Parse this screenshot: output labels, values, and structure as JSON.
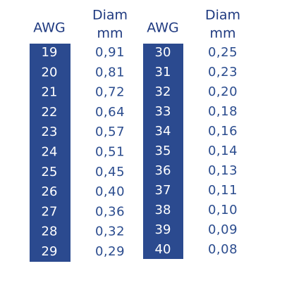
{
  "tables": [
    {
      "header": {
        "awg": "AWG",
        "diam": [
          "Diam",
          "mm"
        ]
      },
      "rows": [
        [
          "19",
          "0,91"
        ],
        [
          "20",
          "0,81"
        ],
        [
          "21",
          "0,72"
        ],
        [
          "22",
          "0,64"
        ],
        [
          "23",
          "0,57"
        ],
        [
          "24",
          "0,51"
        ],
        [
          "25",
          "0,45"
        ],
        [
          "26",
          "0,40"
        ],
        [
          "27",
          "0,36"
        ],
        [
          "28",
          "0,32"
        ],
        [
          "29",
          "0,29"
        ]
      ]
    },
    {
      "header": {
        "awg": "AWG",
        "diam": [
          "Diam",
          "mm"
        ]
      },
      "rows": [
        [
          "30",
          "0,25"
        ],
        [
          "31",
          "0,23"
        ],
        [
          "32",
          "0,20"
        ],
        [
          "33",
          "0,18"
        ],
        [
          "34",
          "0,16"
        ],
        [
          "35",
          "0,14"
        ],
        [
          "36",
          "0,13"
        ],
        [
          "37",
          "0,11"
        ],
        [
          "38",
          "0,10"
        ],
        [
          "39",
          "0,09"
        ],
        [
          "40",
          "0,08"
        ]
      ]
    }
  ]
}
